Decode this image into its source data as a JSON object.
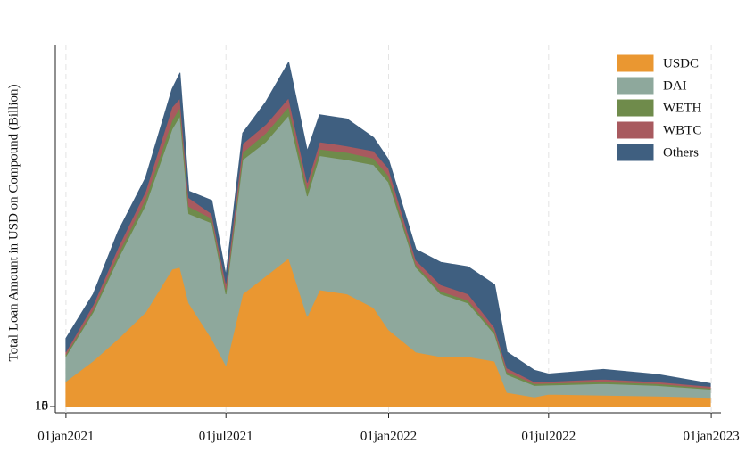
{
  "chart_data": {
    "type": "stacked-area",
    "ylabel": "Total Loan Amount in USD on Compound (Billion)",
    "x": [
      "2021-01-01",
      "2021-02-01",
      "2021-03-01",
      "2021-04-01",
      "2021-05-01",
      "2021-05-10",
      "2021-05-20",
      "2021-06-15",
      "2021-07-01",
      "2021-07-20",
      "2021-08-15",
      "2021-09-10",
      "2021-10-01",
      "2021-10-15",
      "2021-11-15",
      "2021-12-15",
      "2022-01-01",
      "2022-02-01",
      "2022-03-01",
      "2022-04-01",
      "2022-05-01",
      "2022-05-15",
      "2022-06-15",
      "2022-07-01",
      "2022-09-01",
      "2022-11-01",
      "2022-12-31"
    ],
    "series": [
      {
        "name": "USDC",
        "color": "#ea9731",
        "values": [
          550000000.0,
          1000000000.0,
          1480000000.0,
          2060000000.0,
          3000000000.0,
          3040000000.0,
          2260000000.0,
          1480000000.0,
          900000000.0,
          2460000000.0,
          2850000000.0,
          3240000000.0,
          1970000000.0,
          2550000000.0,
          2460000000.0,
          2160000000.0,
          1680000000.0,
          1190000000.0,
          1090000000.0,
          1090000000.0,
          990000000.0,
          310000000.0,
          210000000.0,
          270000000.0,
          250000000.0,
          230000000.0,
          200000000.0
        ]
      },
      {
        "name": "DAI",
        "color": "#8ea89c",
        "values": [
          550000000.0,
          1070000000.0,
          1750000000.0,
          2340000000.0,
          3060000000.0,
          3310000000.0,
          1950000000.0,
          2530000000.0,
          1560000000.0,
          2930000000.0,
          2930000000.0,
          3120000000.0,
          2630000000.0,
          2930000000.0,
          2930000000.0,
          3120000000.0,
          3220000000.0,
          1850000000.0,
          1370000000.0,
          1170000000.0,
          590000000.0,
          390000000.0,
          250000000.0,
          200000000.0,
          250000000.0,
          230000000.0,
          180000000.0
        ]
      },
      {
        "name": "WETH",
        "color": "#6f8b4b",
        "values": [
          40000000.0,
          60000000.0,
          100000000.0,
          140000000.0,
          190000000.0,
          190000000.0,
          160000000.0,
          100000000.0,
          100000000.0,
          160000000.0,
          190000000.0,
          190000000.0,
          160000000.0,
          140000000.0,
          160000000.0,
          140000000.0,
          140000000.0,
          60000000.0,
          60000000.0,
          60000000.0,
          60000000.0,
          60000000.0,
          40000000.0,
          40000000.0,
          40000000.0,
          40000000.0,
          20000000.0
        ]
      },
      {
        "name": "WBTC",
        "color": "#a85a5f",
        "values": [
          60000000.0,
          100000000.0,
          140000000.0,
          160000000.0,
          290000000.0,
          190000000.0,
          190000000.0,
          100000000.0,
          140000000.0,
          190000000.0,
          190000000.0,
          190000000.0,
          140000000.0,
          160000000.0,
          140000000.0,
          160000000.0,
          160000000.0,
          100000000.0,
          140000000.0,
          140000000.0,
          80000000.0,
          80000000.0,
          40000000.0,
          40000000.0,
          60000000.0,
          40000000.0,
          40000000.0
        ]
      },
      {
        "name": "Others",
        "color": "#3f5f80",
        "values": [
          290000000.0,
          230000000.0,
          350000000.0,
          290000000.0,
          390000000.0,
          550000000.0,
          140000000.0,
          290000000.0,
          160000000.0,
          230000000.0,
          490000000.0,
          780000000.0,
          680000000.0,
          590000000.0,
          590000000.0,
          290000000.0,
          190000000.0,
          230000000.0,
          490000000.0,
          590000000.0,
          940000000.0,
          350000000.0,
          250000000.0,
          160000000.0,
          210000000.0,
          160000000.0,
          60000000.0
        ]
      }
    ],
    "xlim": [
      "2020-12-20",
      "2023-01-12"
    ],
    "xticks": [
      {
        "value": "2021-01-01",
        "label": "01jan2021"
      },
      {
        "value": "2021-07-01",
        "label": "01jul2021"
      },
      {
        "value": "2022-01-01",
        "label": "01jan2022"
      },
      {
        "value": "2022-07-01",
        "label": "01jul2022"
      },
      {
        "value": "2023-01-01",
        "label": "01jan2023"
      }
    ],
    "ylim": [
      0,
      8000000000.0
    ],
    "yticks": [
      0,
      5,
      10,
      15
    ],
    "grid": true,
    "legend": "top-right"
  }
}
